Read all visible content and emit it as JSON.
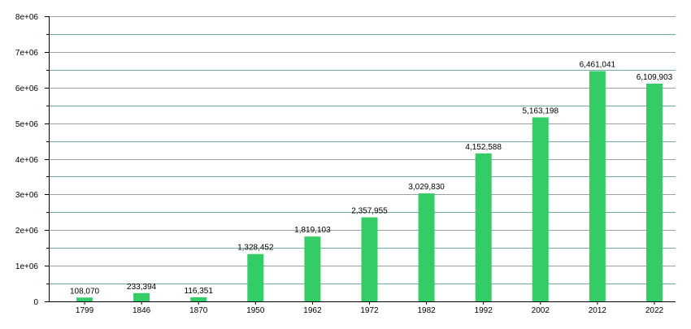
{
  "chart_data": {
    "type": "bar",
    "title": "",
    "xlabel": "",
    "ylabel": "",
    "categories": [
      "1799",
      "1846",
      "1870",
      "1950",
      "1962",
      "1972",
      "1982",
      "1992",
      "2002",
      "2012",
      "2022"
    ],
    "values": [
      108070,
      233394,
      116351,
      1328452,
      1819103,
      2357955,
      3029830,
      4152588,
      5163198,
      6461041,
      6109903
    ],
    "value_labels": [
      "108,070",
      "233,394",
      "116,351",
      "1,328,452",
      "1,819,103",
      "2,357,955",
      "3,029,830",
      "4,152,588",
      "5,163,198",
      "6,461,041",
      "6,109,903"
    ],
    "ylim": [
      0,
      8000000
    ],
    "yticks": [
      0,
      1000000,
      2000000,
      3000000,
      4000000,
      5000000,
      6000000,
      7000000,
      8000000
    ],
    "ytick_labels": [
      "0",
      "1e+06",
      "2e+06",
      "3e+06",
      "4e+06",
      "5e+06",
      "6e+06",
      "7e+06",
      "8e+06"
    ],
    "minor_gridlines": [
      500000,
      1500000,
      2500000,
      3500000,
      4500000,
      5500000,
      6500000,
      7500000
    ],
    "grid": true,
    "legend": false,
    "colors": {
      "bar": "#33cc66",
      "major_grid": "#a0a0a0",
      "minor_grid": "#7aa8a8",
      "axis": "#000000"
    }
  }
}
